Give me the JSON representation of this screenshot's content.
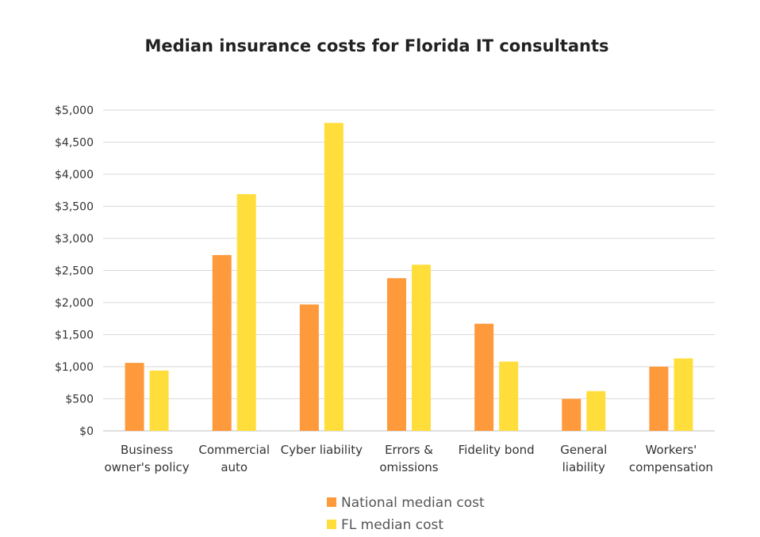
{
  "chart_data": {
    "type": "bar",
    "title": "Median insurance costs for Florida IT consultants",
    "xlabel": "",
    "ylabel": "",
    "ylim": [
      0,
      5000
    ],
    "y_ticks": [
      {
        "value": 0,
        "label": "$0"
      },
      {
        "value": 500,
        "label": "$500"
      },
      {
        "value": 1000,
        "label": "$1,000"
      },
      {
        "value": 1500,
        "label": "$1,500"
      },
      {
        "value": 2000,
        "label": "$2,000"
      },
      {
        "value": 2500,
        "label": "$2,500"
      },
      {
        "value": 3000,
        "label": "$3,000"
      },
      {
        "value": 3500,
        "label": "$3,500"
      },
      {
        "value": 4000,
        "label": "$4,000"
      },
      {
        "value": 4500,
        "label": "$4,500"
      },
      {
        "value": 5000,
        "label": "$5,000"
      }
    ],
    "categories": [
      [
        "Business",
        "owner's policy"
      ],
      [
        "Commercial",
        "auto"
      ],
      [
        "Cyber liability"
      ],
      [
        "Errors &",
        "omissions"
      ],
      [
        "Fidelity bond"
      ],
      [
        "General",
        "liability"
      ],
      [
        "Workers'",
        "compensation"
      ]
    ],
    "series": [
      {
        "name": "National median cost",
        "color": "#FF9A3C",
        "values": [
          1060,
          2740,
          1970,
          2380,
          1670,
          500,
          1000
        ]
      },
      {
        "name": "FL median cost",
        "color": "#FFDE3C",
        "values": [
          940,
          3690,
          4800,
          2590,
          1080,
          620,
          1130
        ]
      }
    ],
    "grid": true,
    "legend_position": "bottom"
  }
}
